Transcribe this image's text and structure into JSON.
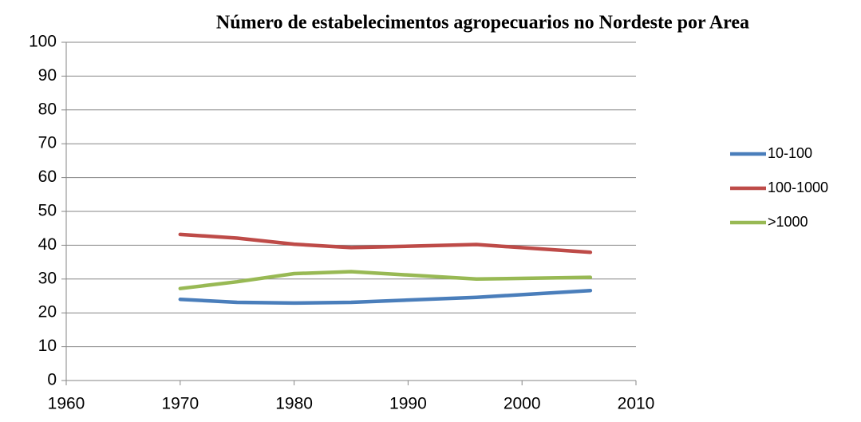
{
  "chart_data": {
    "type": "line",
    "title": "Número de estabelecimentos agropecuarios no Nordeste por Area",
    "x": [
      1970,
      1975,
      1980,
      1985,
      1996,
      2006
    ],
    "series": [
      {
        "name": "10-100",
        "color": "#4a7ebb",
        "values": [
          24,
          23.1,
          22.9,
          23.1,
          24.6,
          26.6
        ]
      },
      {
        "name": "100-1000",
        "color": "#be4b48",
        "values": [
          43.2,
          42.1,
          40.3,
          39.3,
          40.2,
          37.9
        ]
      },
      {
        "name": ">1000",
        "color": "#98b954",
        "values": [
          27.2,
          29.2,
          31.6,
          32.2,
          30,
          30.5
        ]
      }
    ],
    "xlim": [
      1960,
      2010
    ],
    "xticks": [
      1960,
      1970,
      1980,
      1990,
      2000,
      2010
    ],
    "ylim": [
      0,
      100
    ],
    "yticks": [
      0,
      10,
      20,
      30,
      40,
      50,
      60,
      70,
      80,
      90,
      100
    ],
    "grid": true,
    "legend": "right"
  }
}
